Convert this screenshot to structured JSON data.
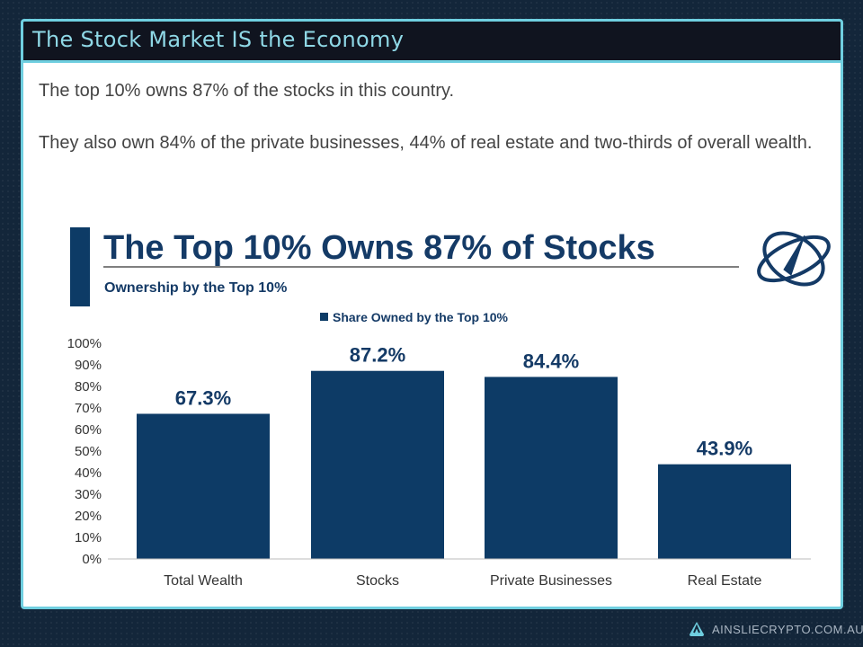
{
  "slide": {
    "title": "The Stock Market IS the Economy",
    "paragraphs": [
      "The top 10% owns 87% of the stocks in this country.",
      "They also own 84% of the private businesses, 44% of real estate and two-thirds of overall wealth."
    ]
  },
  "footer": {
    "brand": "AINSLIECRYPTO.COM.AU",
    "icon": "ainslie-logo-icon"
  },
  "colors": {
    "bar": "#0d3b66",
    "title": "#143a66",
    "border": "#6fcfe0",
    "titlebar": "#10141f"
  },
  "chart_data": {
    "type": "bar",
    "title": "The Top 10% Owns 87% of Stocks",
    "subtitle": "Ownership by the Top 10%",
    "legend": "Share Owned by the Top 10%",
    "legend_position": "top",
    "categories": [
      "Total Wealth",
      "Stocks",
      "Private Businesses",
      "Real Estate"
    ],
    "values": [
      67.3,
      87.2,
      84.4,
      43.9
    ],
    "data_labels": [
      "67.3%",
      "87.2%",
      "84.4%",
      "43.9%"
    ],
    "ylim": [
      0,
      100
    ],
    "yticks": [
      "0%",
      "10%",
      "20%",
      "30%",
      "40%",
      "50%",
      "60%",
      "70%",
      "80%",
      "90%",
      "100%"
    ],
    "grid": false,
    "logo": "rocket-orbit-logo"
  }
}
